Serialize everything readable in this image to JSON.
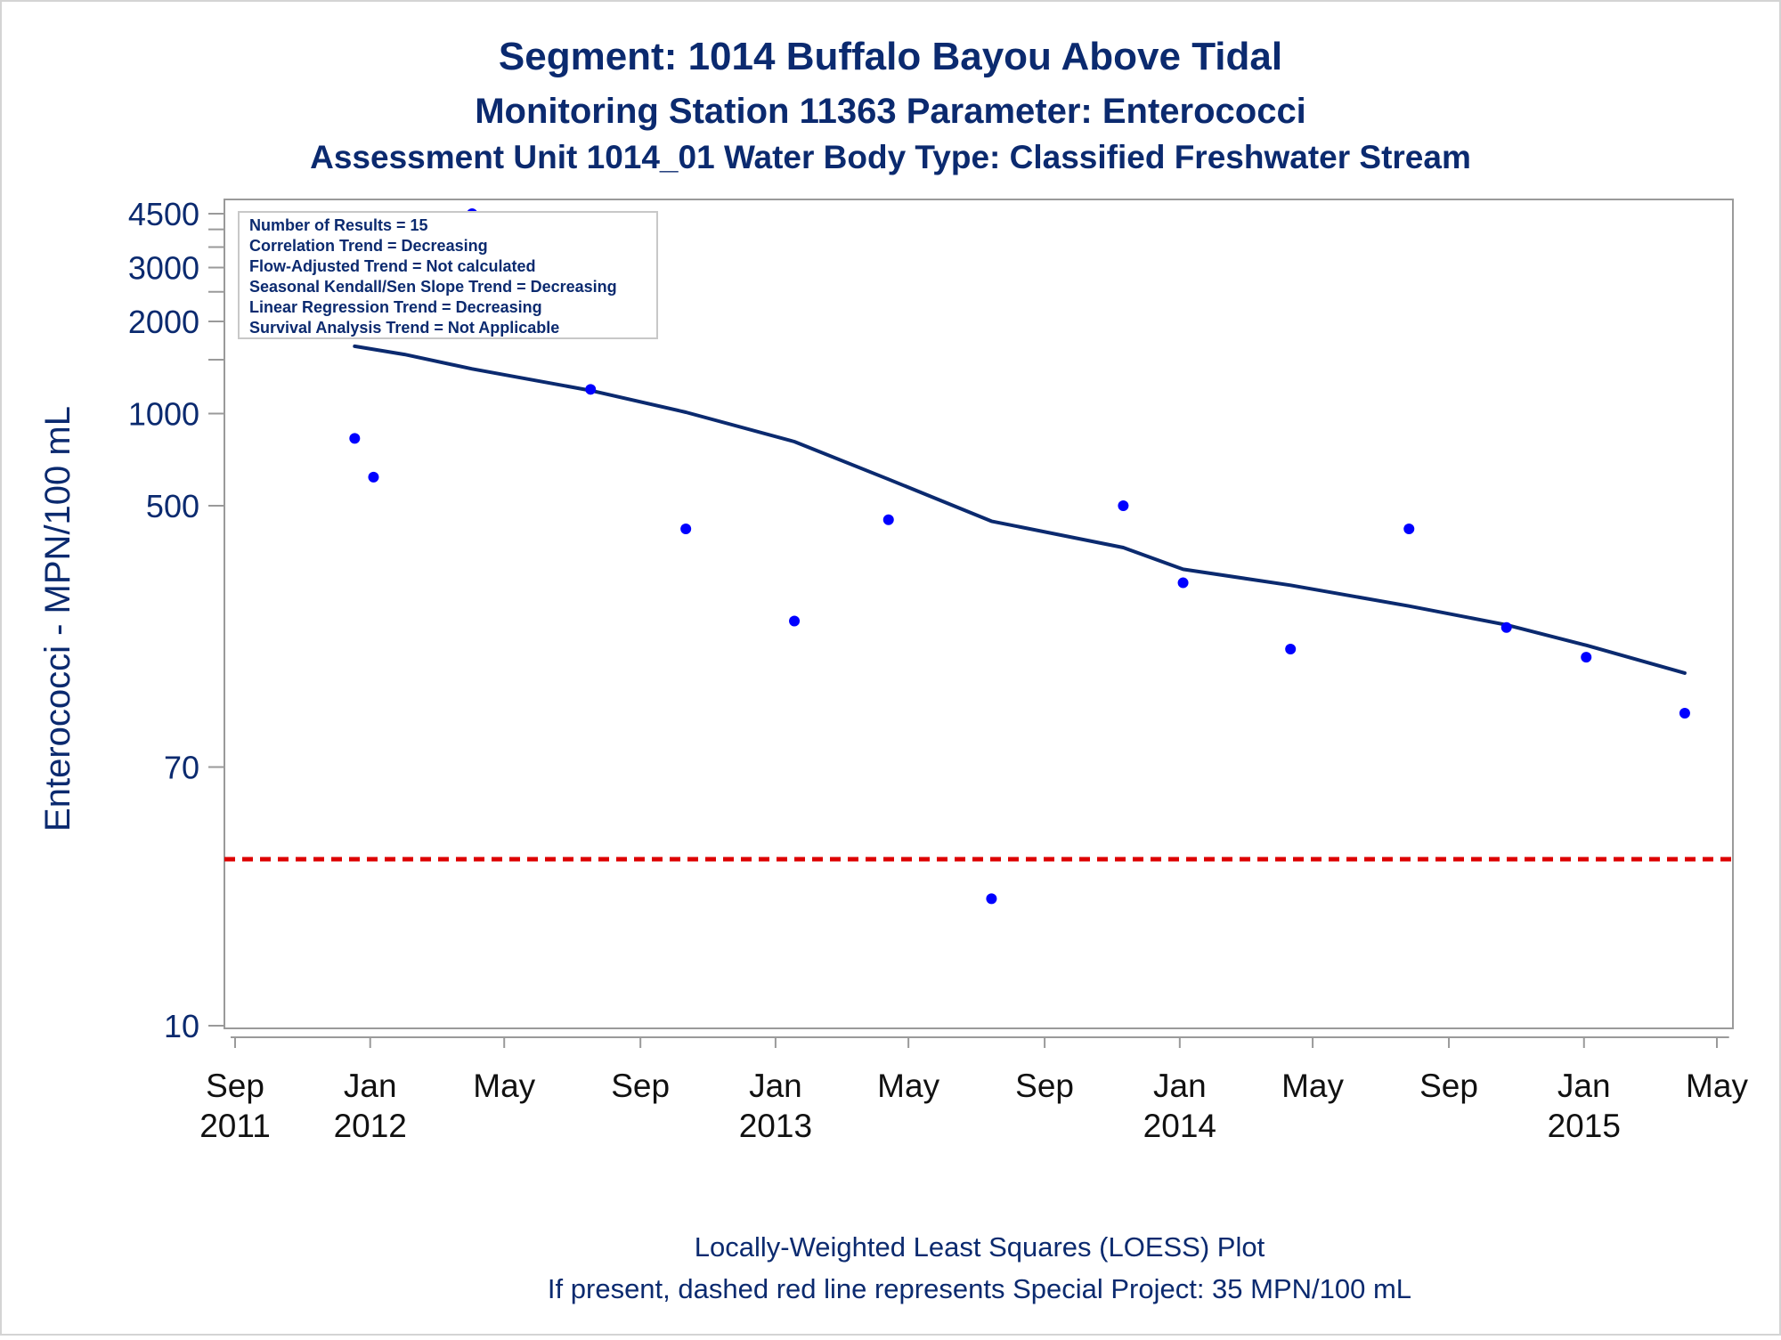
{
  "colors": {
    "text": "#0b2a6f",
    "axis_text": "#111111",
    "frame": "#9a9a9a",
    "points": "#0000ff",
    "loess": "#0b2a6f",
    "reference": "#dd0000"
  },
  "chart_data": {
    "type": "scatter",
    "title": "Segment: 1014  Buffalo Bayou Above Tidal",
    "subtitle": "Monitoring Station 11363 Parameter: Enterococci",
    "subtitle2": "Assessment Unit 1014_01   Water Body Type: Classified Freshwater Stream",
    "ylabel": "Enterococci - MPN/100 mL",
    "y_scale": "log",
    "ylim": [
      10,
      4700
    ],
    "y_ticks": [
      {
        "value": 10,
        "label": "10"
      },
      {
        "value": 70,
        "label": "70"
      },
      {
        "value": 500,
        "label": "500"
      },
      {
        "value": 1000,
        "label": "1000"
      },
      {
        "value": 2000,
        "label": "2000"
      },
      {
        "value": 3000,
        "label": "3000"
      },
      {
        "value": 4500,
        "label": "4500"
      }
    ],
    "y_minor_ticks": [
      1500,
      2500,
      3500,
      4000
    ],
    "xlim": [
      "2011-08-28",
      "2015-05-12"
    ],
    "x_ticks": [
      {
        "date": "2011-09-01",
        "month": "Sep",
        "year": "2011"
      },
      {
        "date": "2012-01-01",
        "month": "Jan",
        "year": "2012"
      },
      {
        "date": "2012-05-01",
        "month": "May",
        "year": ""
      },
      {
        "date": "2012-09-01",
        "month": "Sep",
        "year": ""
      },
      {
        "date": "2013-01-01",
        "month": "Jan",
        "year": "2013"
      },
      {
        "date": "2013-05-01",
        "month": "May",
        "year": ""
      },
      {
        "date": "2013-09-01",
        "month": "Sep",
        "year": ""
      },
      {
        "date": "2014-01-01",
        "month": "Jan",
        "year": "2014"
      },
      {
        "date": "2014-05-01",
        "month": "May",
        "year": ""
      },
      {
        "date": "2014-09-01",
        "month": "Sep",
        "year": ""
      },
      {
        "date": "2015-01-01",
        "month": "Jan",
        "year": "2015"
      },
      {
        "date": "2015-05-01",
        "month": "May",
        "year": ""
      }
    ],
    "series": [
      {
        "type": "scatter",
        "points": [
          {
            "x": "2011-12-18",
            "y": 830
          },
          {
            "x": "2012-01-04",
            "y": 620
          },
          {
            "x": "2012-04-02",
            "y": 4500
          },
          {
            "x": "2012-07-18",
            "y": 1200
          },
          {
            "x": "2012-10-12",
            "y": 420
          },
          {
            "x": "2013-01-18",
            "y": 210
          },
          {
            "x": "2013-04-13",
            "y": 450
          },
          {
            "x": "2013-07-15",
            "y": 26
          },
          {
            "x": "2013-11-11",
            "y": 500
          },
          {
            "x": "2014-01-04",
            "y": 280
          },
          {
            "x": "2014-04-11",
            "y": 170
          },
          {
            "x": "2014-07-27",
            "y": 420
          },
          {
            "x": "2014-10-23",
            "y": 200
          },
          {
            "x": "2015-01-03",
            "y": 160
          },
          {
            "x": "2015-04-02",
            "y": 105
          }
        ]
      },
      {
        "type": "line",
        "points": [
          {
            "x": "2011-12-18",
            "y": 1660
          },
          {
            "x": "2012-02-01",
            "y": 1560
          },
          {
            "x": "2012-04-02",
            "y": 1400
          },
          {
            "x": "2012-07-18",
            "y": 1190
          },
          {
            "x": "2012-10-12",
            "y": 1010
          },
          {
            "x": "2013-01-18",
            "y": 810
          },
          {
            "x": "2013-04-13",
            "y": 610
          },
          {
            "x": "2013-07-15",
            "y": 445
          },
          {
            "x": "2013-11-11",
            "y": 365
          },
          {
            "x": "2014-01-04",
            "y": 310
          },
          {
            "x": "2014-04-11",
            "y": 275
          },
          {
            "x": "2014-07-27",
            "y": 235
          },
          {
            "x": "2014-10-23",
            "y": 204
          },
          {
            "x": "2015-01-03",
            "y": 175
          },
          {
            "x": "2015-04-02",
            "y": 142
          }
        ]
      }
    ],
    "reference_line": {
      "y": 35,
      "style": "dashed"
    },
    "stats_box": {
      "placement": "top-left",
      "lines": [
        "Number of Results = 15",
        "Correlation Trend = Decreasing",
        "Flow-Adjusted Trend = Not calculated",
        "Seasonal Kendall/Sen Slope Trend = Decreasing",
        "Linear Regression Trend = Decreasing",
        "Survival Analysis Trend = Not Applicable"
      ]
    },
    "footnote1": "Locally-Weighted Least Squares (LOESS) Plot",
    "footnote2": "If present, dashed red line represents Special Project: 35 MPN/100 mL",
    "grid": false
  }
}
